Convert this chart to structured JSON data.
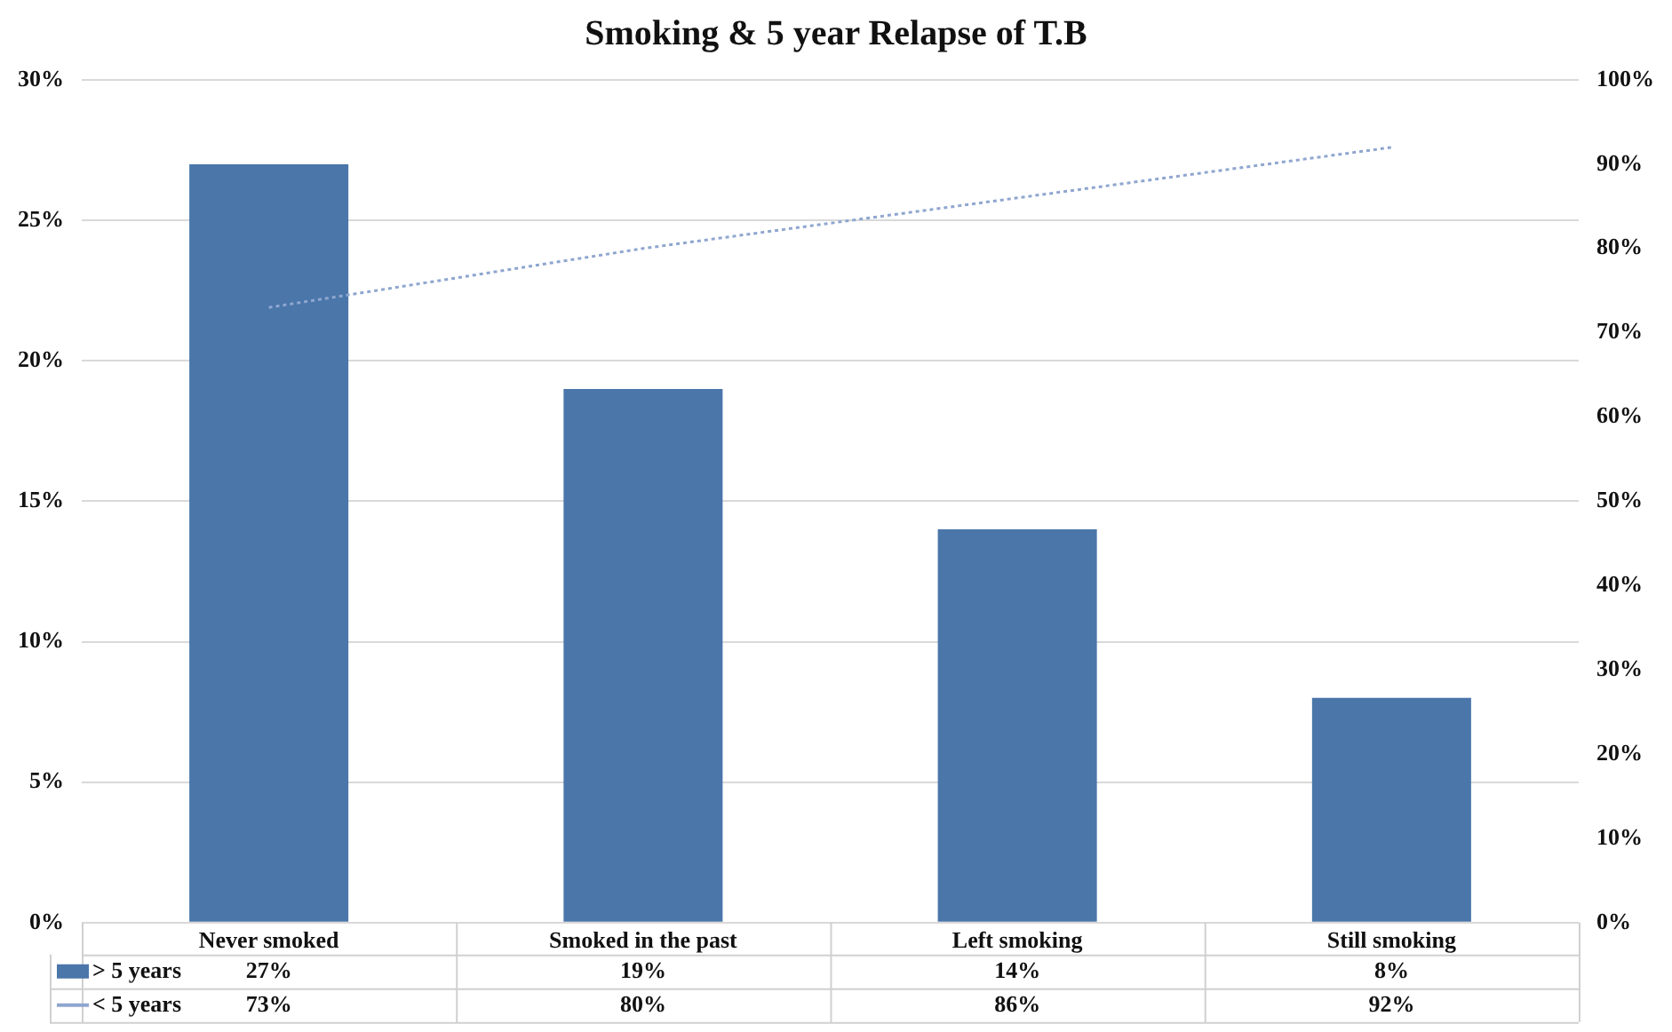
{
  "chart_data": {
    "type": "bar",
    "title": "Smoking & 5 year Relapse of T.B",
    "categories": [
      "Never smoked",
      "Smoked in the past",
      "Left smoking",
      "Still smoking"
    ],
    "series": [
      {
        "name": "> 5 years",
        "color": "#4a76aa",
        "values": [
          27,
          19,
          14,
          8
        ],
        "value_labels": [
          "27%",
          "19%",
          "14%",
          "8%"
        ]
      },
      {
        "name": "< 5 years",
        "type": "line",
        "axis": "y2",
        "color": "#8ea6cf",
        "line_style": "dotted",
        "marker": "none",
        "values": [
          73,
          80,
          86,
          92
        ],
        "value_labels": [
          "73%",
          "80%",
          "86%",
          "92%"
        ]
      }
    ],
    "ylim": [
      0,
      30
    ],
    "yticks": [
      {
        "value": 0,
        "label": "0%"
      },
      {
        "value": 5,
        "label": "5%"
      },
      {
        "value": 10,
        "label": "10%"
      },
      {
        "value": 15,
        "label": "15%"
      },
      {
        "value": 20,
        "label": "20%"
      },
      {
        "value": 25,
        "label": "25%"
      },
      {
        "value": 30,
        "label": "30%"
      }
    ],
    "y2lim": [
      0,
      100
    ],
    "y2ticks": [
      {
        "value": 0,
        "label": "0%"
      },
      {
        "value": 10,
        "label": "10%"
      },
      {
        "value": 20,
        "label": "20%"
      },
      {
        "value": 30,
        "label": "30%"
      },
      {
        "value": 40,
        "label": "40%"
      },
      {
        "value": 50,
        "label": "50%"
      },
      {
        "value": 60,
        "label": "60%"
      },
      {
        "value": 70,
        "label": "70%"
      },
      {
        "value": 80,
        "label": "80%"
      },
      {
        "value": 90,
        "label": "90%"
      },
      {
        "value": 100,
        "label": "100%"
      }
    ],
    "grid": "y",
    "legend": "bottom left"
  }
}
